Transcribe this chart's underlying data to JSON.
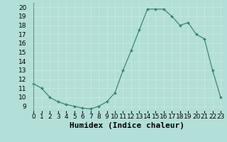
{
  "x": [
    0,
    1,
    2,
    3,
    4,
    5,
    6,
    7,
    8,
    9,
    10,
    11,
    12,
    13,
    14,
    15,
    16,
    17,
    18,
    19,
    20,
    21,
    22,
    23
  ],
  "y": [
    11.5,
    11.0,
    10.0,
    9.5,
    9.2,
    9.0,
    8.8,
    8.7,
    9.0,
    9.5,
    10.5,
    13.0,
    15.2,
    17.5,
    19.8,
    19.8,
    19.8,
    19.0,
    18.0,
    18.3,
    17.0,
    16.5,
    13.0,
    10.0
  ],
  "xlabel": "Humidex (Indice chaleur)",
  "xlim": [
    -0.5,
    23.5
  ],
  "ylim": [
    8.5,
    20.5
  ],
  "yticks": [
    9,
    10,
    11,
    12,
    13,
    14,
    15,
    16,
    17,
    18,
    19,
    20
  ],
  "xticks": [
    0,
    1,
    2,
    3,
    4,
    5,
    6,
    7,
    8,
    9,
    10,
    11,
    12,
    13,
    14,
    15,
    16,
    17,
    18,
    19,
    20,
    21,
    22,
    23
  ],
  "line_color": "#2e7d6e",
  "marker_color": "#2e7d6e",
  "bg_color": "#b2dfd7",
  "grid_color": "#c8e8e0",
  "xlabel_fontsize": 8,
  "tick_fontsize": 6.5
}
